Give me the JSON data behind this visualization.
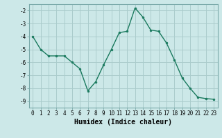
{
  "x": [
    0,
    1,
    2,
    3,
    4,
    5,
    6,
    7,
    8,
    9,
    10,
    11,
    12,
    13,
    14,
    15,
    16,
    17,
    18,
    19,
    20,
    21,
    22,
    23
  ],
  "y": [
    -4.0,
    -5.0,
    -5.5,
    -5.5,
    -5.5,
    -6.0,
    -6.5,
    -8.2,
    -7.5,
    -6.2,
    -5.0,
    -3.7,
    -3.6,
    -1.8,
    -2.5,
    -3.5,
    -3.6,
    -4.5,
    -5.8,
    -7.2,
    -8.0,
    -8.7,
    -8.8,
    -8.85
  ],
  "line_color": "#1a7a5e",
  "marker": "o",
  "marker_size": 2,
  "bg_color": "#cce8e8",
  "grid_color": "#aacccc",
  "xlabel": "Humidex (Indice chaleur)",
  "ylim": [
    -9.5,
    -1.5
  ],
  "xlim": [
    -0.5,
    23.5
  ],
  "yticks": [
    -2,
    -3,
    -4,
    -5,
    -6,
    -7,
    -8,
    -9
  ],
  "xticks": [
    0,
    1,
    2,
    3,
    4,
    5,
    6,
    7,
    8,
    9,
    10,
    11,
    12,
    13,
    14,
    15,
    16,
    17,
    18,
    19,
    20,
    21,
    22,
    23
  ],
  "tick_fontsize": 5.5,
  "label_fontsize": 7.0
}
